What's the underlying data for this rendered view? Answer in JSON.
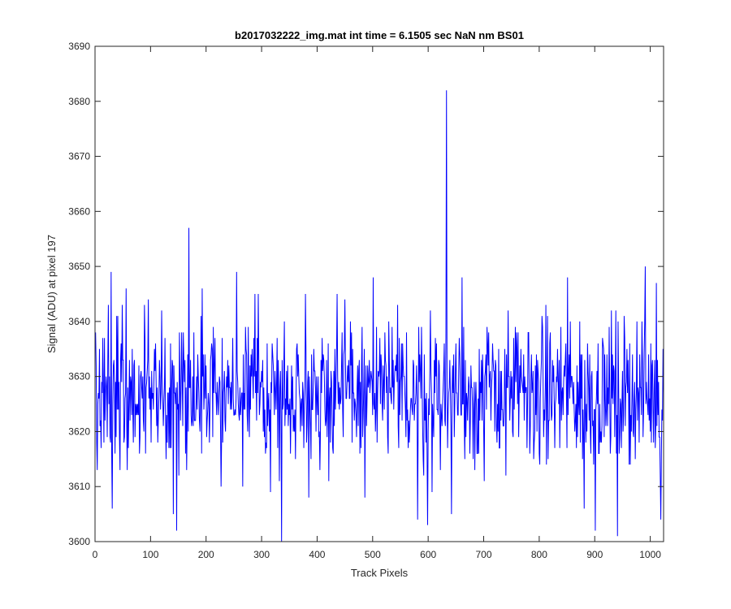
{
  "chart_data": {
    "type": "line",
    "title": "b2017032222_img.mat int time = 6.1505 sec  NaN nm BS01",
    "xlabel": "Track Pixels",
    "ylabel": "Signal (ADU) at pixel 197",
    "xlim": [
      0,
      1024
    ],
    "ylim": [
      3600,
      3690
    ],
    "xticks": [
      0,
      100,
      200,
      300,
      400,
      500,
      600,
      700,
      800,
      900,
      1000
    ],
    "yticks": [
      3600,
      3610,
      3620,
      3630,
      3640,
      3650,
      3660,
      3670,
      3680,
      3690
    ],
    "grid": false,
    "series": [
      {
        "color": "#0000ff",
        "n_points": 1024,
        "mean": 3627,
        "noise_range": [
          3606,
          3648
        ],
        "spikes": [
          {
            "x": 3,
            "y": 3613
          },
          {
            "x": 28,
            "y": 3649
          },
          {
            "x": 30,
            "y": 3606
          },
          {
            "x": 55,
            "y": 3646
          },
          {
            "x": 95,
            "y": 3644
          },
          {
            "x": 140,
            "y": 3605
          },
          {
            "x": 146,
            "y": 3602
          },
          {
            "x": 168,
            "y": 3657
          },
          {
            "x": 192,
            "y": 3646
          },
          {
            "x": 254,
            "y": 3649
          },
          {
            "x": 265,
            "y": 3610
          },
          {
            "x": 287,
            "y": 3645
          },
          {
            "x": 315,
            "y": 3609
          },
          {
            "x": 335,
            "y": 3600
          },
          {
            "x": 378,
            "y": 3645
          },
          {
            "x": 435,
            "y": 3645
          },
          {
            "x": 485,
            "y": 3608
          },
          {
            "x": 500,
            "y": 3648
          },
          {
            "x": 580,
            "y": 3604
          },
          {
            "x": 598,
            "y": 3603
          },
          {
            "x": 632,
            "y": 3682
          },
          {
            "x": 641,
            "y": 3605
          },
          {
            "x": 660,
            "y": 3648
          },
          {
            "x": 700,
            "y": 3611
          },
          {
            "x": 850,
            "y": 3648
          },
          {
            "x": 880,
            "y": 3606
          },
          {
            "x": 900,
            "y": 3602
          },
          {
            "x": 940,
            "y": 3601
          },
          {
            "x": 990,
            "y": 3650
          },
          {
            "x": 1010,
            "y": 3647
          },
          {
            "x": 1018,
            "y": 3604
          }
        ]
      }
    ]
  }
}
